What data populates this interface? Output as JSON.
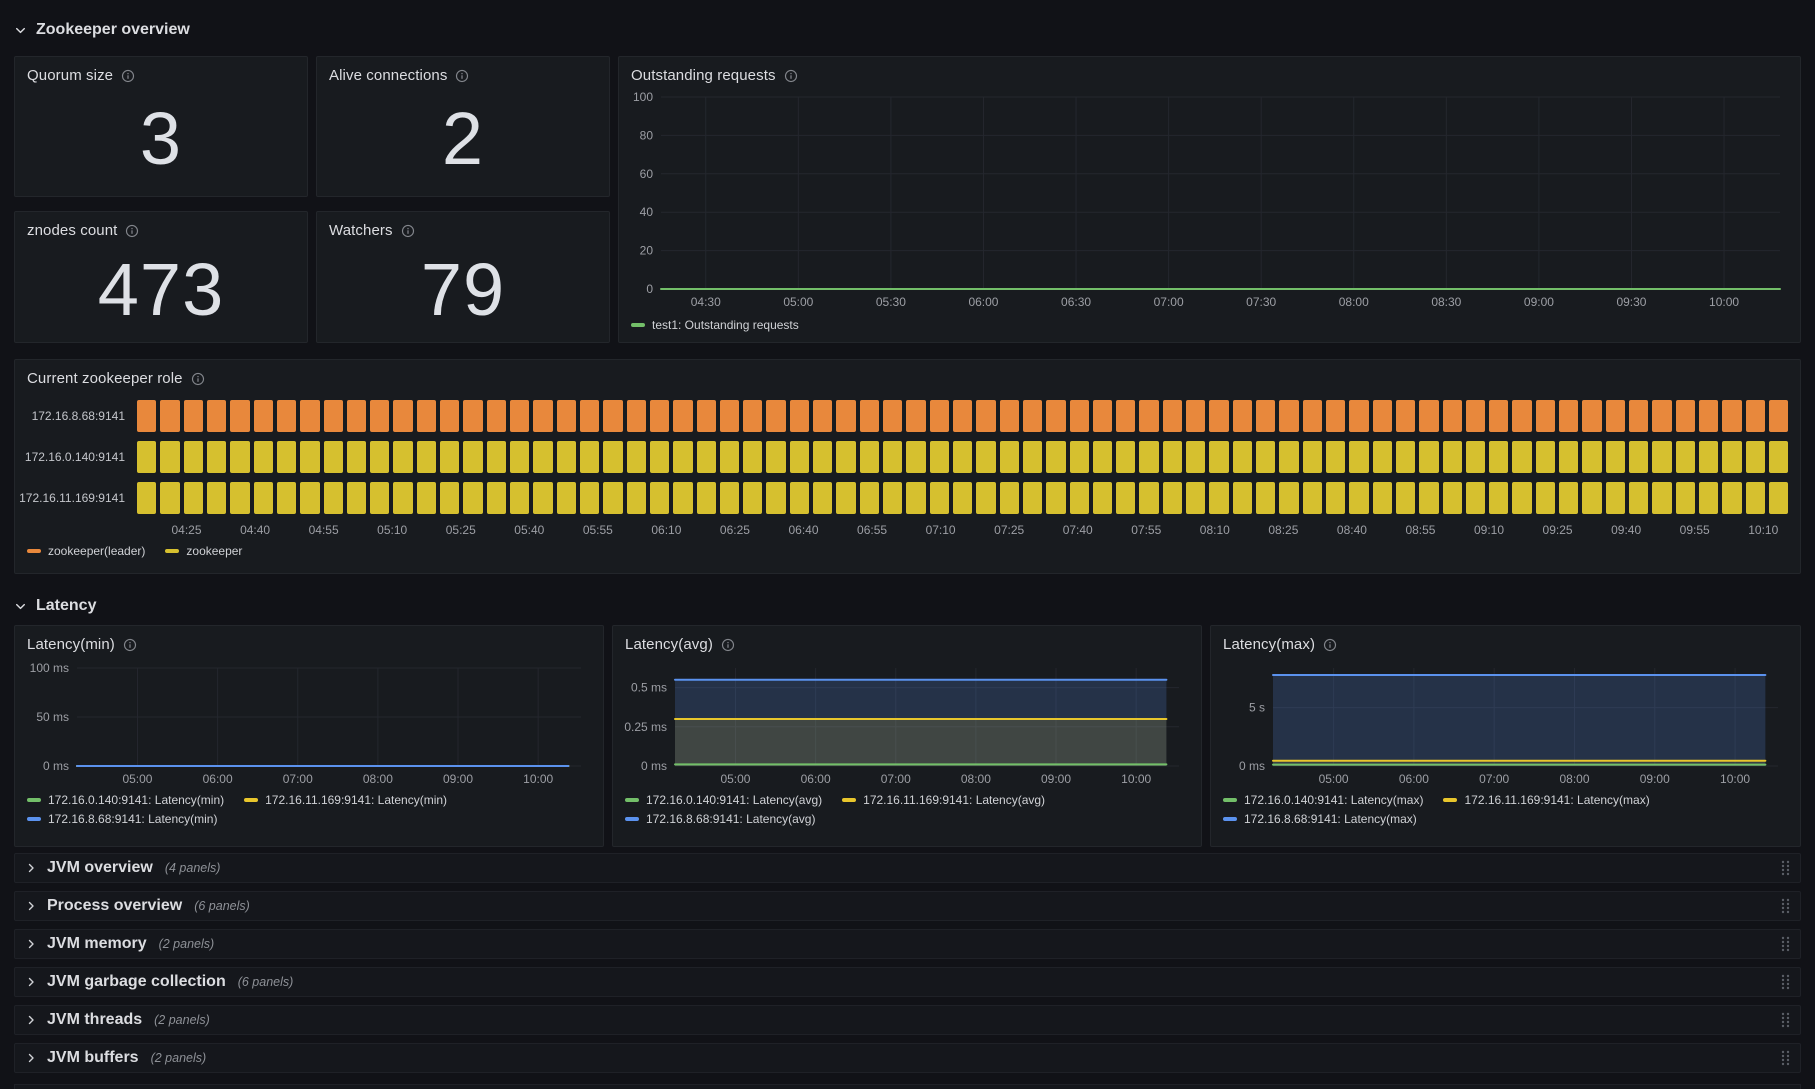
{
  "colors": {
    "page_bg": "#111217",
    "panel_bg": "#181b1f",
    "panel_border": "#23262b",
    "text": "#dcdde1",
    "axis": "#9d9fa5",
    "grid": "#24272e",
    "green": "#73bf69",
    "yellow": "#e8c62c",
    "blue": "#5b92ee",
    "orange": "#e8883c",
    "bar_yellow": "#d6c02f",
    "stat_value": "#dee1e6"
  },
  "section_zookeeper": {
    "title": "Zookeeper overview"
  },
  "section_latency": {
    "title": "Latency"
  },
  "stats": {
    "quorum": {
      "title": "Quorum size",
      "value": "3"
    },
    "alive": {
      "title": "Alive connections",
      "value": "2"
    },
    "znodes": {
      "title": "znodes count",
      "value": "473"
    },
    "watchers": {
      "title": "Watchers",
      "value": "79"
    }
  },
  "charts": {
    "outstanding": {
      "type": "line",
      "title": "Outstanding requests",
      "ylim": [
        0,
        100
      ],
      "yticks": [
        {
          "v": 0,
          "label": "0"
        },
        {
          "v": 20,
          "label": "20"
        },
        {
          "v": 40,
          "label": "40"
        },
        {
          "v": 60,
          "label": "60"
        },
        {
          "v": 80,
          "label": "80"
        },
        {
          "v": 100,
          "label": "100"
        }
      ],
      "xticks": [
        "04:30",
        "05:00",
        "05:30",
        "06:00",
        "06:30",
        "07:00",
        "07:30",
        "08:00",
        "08:30",
        "09:00",
        "09:30",
        "10:00"
      ],
      "series": [
        {
          "name": "test1: Outstanding requests",
          "color": "green",
          "value": 0
        }
      ]
    },
    "latency_min": {
      "type": "line",
      "title": "Latency(min)",
      "ylim": [
        0,
        100
      ],
      "yticks": [
        {
          "v": 0,
          "label": "0 ms"
        },
        {
          "v": 50,
          "label": "50 ms"
        },
        {
          "v": 100,
          "label": "100 ms"
        }
      ],
      "xticks": [
        "05:00",
        "06:00",
        "07:00",
        "08:00",
        "09:00",
        "10:00"
      ],
      "series": [
        {
          "name": "172.16.0.140:9141: Latency(min)",
          "color": "green",
          "value": 0
        },
        {
          "name": "172.16.11.169:9141: Latency(min)",
          "color": "yellow",
          "value": 0
        },
        {
          "name": "172.16.8.68:9141: Latency(min)",
          "color": "blue",
          "value": 0
        }
      ]
    },
    "latency_avg": {
      "type": "line",
      "title": "Latency(avg)",
      "ylim": [
        0,
        0.625
      ],
      "yticks": [
        {
          "v": 0,
          "label": "0 ms"
        },
        {
          "v": 0.25,
          "label": "0.25 ms"
        },
        {
          "v": 0.5,
          "label": "0.5 ms"
        }
      ],
      "xticks": [
        "05:00",
        "06:00",
        "07:00",
        "08:00",
        "09:00",
        "10:00"
      ],
      "series": [
        {
          "name": "172.16.0.140:9141: Latency(avg)",
          "color": "green",
          "value": 0.01
        },
        {
          "name": "172.16.11.169:9141: Latency(avg)",
          "color": "yellow",
          "value": 0.3,
          "fill": 0.14
        },
        {
          "name": "172.16.8.68:9141: Latency(avg)",
          "color": "blue",
          "value": 0.55,
          "fill": 0.2
        }
      ]
    },
    "latency_max": {
      "type": "line",
      "title": "Latency(max)",
      "ylim": [
        0,
        8.4
      ],
      "yticks": [
        {
          "v": 0,
          "label": "0 ms"
        },
        {
          "v": 5,
          "label": "5 s"
        }
      ],
      "xticks": [
        "05:00",
        "06:00",
        "07:00",
        "08:00",
        "09:00",
        "10:00"
      ],
      "series": [
        {
          "name": "172.16.0.140:9141: Latency(max)",
          "color": "green",
          "value": 0.12
        },
        {
          "name": "172.16.11.169:9141: Latency(max)",
          "color": "yellow",
          "value": 0.45,
          "fill": 0.1
        },
        {
          "name": "172.16.8.68:9141: Latency(max)",
          "color": "blue",
          "value": 7.8,
          "fill": 0.2
        }
      ]
    }
  },
  "role": {
    "type": "status-history",
    "title": "Current zookeeper role",
    "bar_count": 71,
    "rows": [
      {
        "label": "172.16.8.68:9141",
        "state": "zookeeper(leader)",
        "color": "orange"
      },
      {
        "label": "172.16.0.140:9141",
        "state": "zookeeper",
        "color": "bar_yellow"
      },
      {
        "label": "172.16.11.169:9141",
        "state": "zookeeper",
        "color": "bar_yellow"
      }
    ],
    "xticks": [
      "04:25",
      "04:40",
      "04:55",
      "05:10",
      "05:25",
      "05:40",
      "05:55",
      "06:10",
      "06:25",
      "06:40",
      "06:55",
      "07:10",
      "07:25",
      "07:40",
      "07:55",
      "08:10",
      "08:25",
      "08:40",
      "08:55",
      "09:10",
      "09:25",
      "09:40",
      "09:55",
      "10:10"
    ],
    "legend": [
      {
        "label": "zookeeper(leader)",
        "color": "orange"
      },
      {
        "label": "zookeeper",
        "color": "bar_yellow"
      }
    ]
  },
  "collapsed_rows": [
    {
      "title": "JVM overview",
      "count": "(4 panels)"
    },
    {
      "title": "Process overview",
      "count": "(6 panels)"
    },
    {
      "title": "JVM memory",
      "count": "(2 panels)"
    },
    {
      "title": "JVM garbage collection",
      "count": "(6 panels)"
    },
    {
      "title": "JVM threads",
      "count": "(2 panels)"
    },
    {
      "title": "JVM buffers",
      "count": "(2 panels)"
    }
  ]
}
